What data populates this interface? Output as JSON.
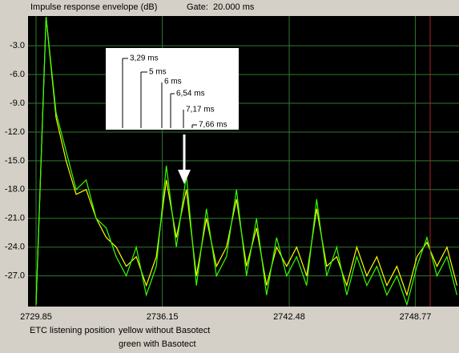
{
  "chart_data": {
    "type": "line",
    "title": "Impulse response envelope (dB)",
    "gate": "Gate:  20.000 ms",
    "x": [
      2729.85,
      2730.35,
      2730.85,
      2731.35,
      2731.85,
      2732.35,
      2732.85,
      2733.35,
      2733.85,
      2734.35,
      2734.85,
      2735.35,
      2735.85,
      2736.35,
      2736.85,
      2737.35,
      2737.85,
      2738.35,
      2738.85,
      2739.35,
      2739.85,
      2740.35,
      2740.85,
      2741.35,
      2741.85,
      2742.35,
      2742.85,
      2743.35,
      2743.85,
      2744.35,
      2744.85,
      2745.35,
      2745.85,
      2746.35,
      2746.85,
      2747.35,
      2747.85,
      2748.35,
      2748.85,
      2749.35,
      2749.85,
      2750.35,
      2750.85
    ],
    "series": [
      {
        "color": "#ffff00",
        "values": [
          -30,
          0,
          -10.5,
          -15,
          -18.5,
          -18,
          -21,
          -23,
          -24,
          -26,
          -25,
          -28,
          -25,
          -17,
          -23,
          -18,
          -27,
          -21,
          -26,
          -24,
          -19,
          -26,
          -22,
          -28,
          -24,
          -26,
          -24,
          -27,
          -20,
          -26,
          -25,
          -28,
          -24,
          -27,
          -25,
          -28,
          -26,
          -29,
          -25,
          -23.5,
          -26,
          -24,
          -28
        ]
      },
      {
        "color": "#33ff00",
        "values": [
          -30,
          0,
          -10,
          -14,
          -18,
          -17,
          -21,
          -22,
          -25,
          -27,
          -24,
          -29,
          -26,
          -15.5,
          -24,
          -16.5,
          -28,
          -20,
          -27,
          -25,
          -18,
          -27,
          -21,
          -29,
          -23,
          -27,
          -25,
          -28,
          -19,
          -27,
          -24,
          -29,
          -25,
          -28,
          -26,
          -29,
          -27,
          -30,
          -26,
          -23,
          -27,
          -25,
          -29
        ]
      }
    ],
    "xlim": [
      2729.45,
      2750.95
    ],
    "ylim": [
      -30.2,
      0.1
    ],
    "xticks": [
      2729.85,
      2736.15,
      2742.48,
      2748.77
    ],
    "yticks": [
      {
        "value": -3,
        "label": "-3.0"
      },
      {
        "value": -6,
        "label": "-6.0"
      },
      {
        "value": -9,
        "label": "-9.0"
      },
      {
        "value": -12,
        "label": "-12.0"
      },
      {
        "value": -15,
        "label": "-15.0"
      },
      {
        "value": -18,
        "label": "-18.0"
      },
      {
        "value": -21,
        "label": "-21.0"
      },
      {
        "value": -24,
        "label": "-24.0"
      },
      {
        "value": -27,
        "label": "-27.0"
      }
    ],
    "grid": true,
    "annotations": [
      "3,29 ms",
      "5 ms",
      "6 ms",
      "6,54 ms",
      "7,17 ms",
      "7,66 ms"
    ],
    "notes": [
      "ETC listening position",
      "yellow without Basotect",
      "green with Basotect"
    ]
  }
}
